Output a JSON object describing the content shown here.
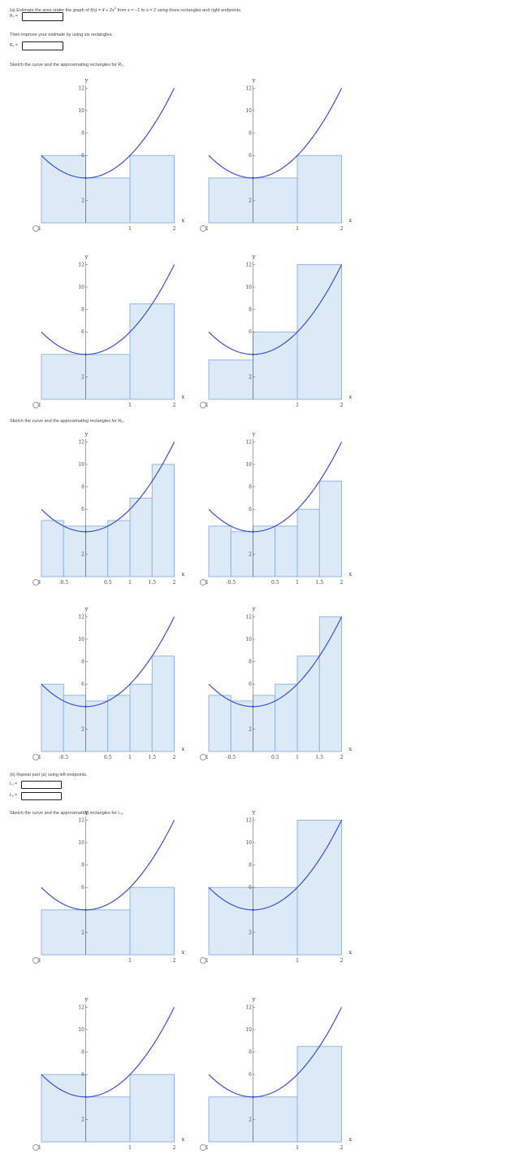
{
  "part_a": {
    "question_prefix": "(a) Estimate the area under the graph of",
    "function_text": "f(x) = 4 + 2x",
    "exponent": "2",
    "question_suffix": "from x = −1 to x = 2 using three rectangles and right endpoints.",
    "r3_label": "R₃ =",
    "r3_value": "",
    "improve_text": "Then improve your estimate by using six rectangles.",
    "r6_label": "R₆ =",
    "r6_value": "",
    "sketch_r3_text": "Sketch the curve and the approximating rectangles for R₃.",
    "sketch_r6_text": "Sketch the curve and the approximating rectangles for R₆."
  },
  "part_b": {
    "question": "(b) Repeat part (a) using left endpoints.",
    "l3_label": "L₃ =",
    "l3_value": "",
    "l6_label": "L₆ =",
    "l6_value": "",
    "sketch_l3_text": "Sketch the curve and the approximating rectangles for L₃."
  },
  "axis": {
    "x_label": "x",
    "y_label": "y",
    "x_range": [
      -1,
      2
    ],
    "y_range": [
      0,
      12
    ],
    "y_ticks": [
      "2",
      "6",
      "8",
      "10",
      "12"
    ],
    "x_ticks_coarse": [
      "-1",
      "1",
      "2"
    ],
    "x_ticks_fine": [
      "-1",
      "-0.5",
      "0.5",
      "1",
      "1.5",
      "2"
    ]
  },
  "colors": {
    "curve": "#3b4fd8",
    "rect_fill": "#dceaf8",
    "rect_stroke": "#8aaee0",
    "axis": "#666666"
  },
  "graphs": [
    {
      "id": "r3-opt1",
      "rects": [
        [
          -1,
          0,
          6
        ],
        [
          0,
          1,
          4
        ],
        [
          1,
          2,
          6
        ]
      ]
    },
    {
      "id": "r3-opt2",
      "rects": [
        [
          -1,
          0,
          4
        ],
        [
          0,
          1,
          4
        ],
        [
          1,
          2,
          6
        ]
      ]
    },
    {
      "id": "r3-opt3",
      "rects": [
        [
          -1,
          0,
          4
        ],
        [
          0,
          1,
          4
        ],
        [
          1,
          2,
          8.5
        ]
      ]
    },
    {
      "id": "r3-opt4",
      "rects": [
        [
          -1,
          0,
          3.5
        ],
        [
          0,
          1,
          6
        ],
        [
          1,
          2,
          12
        ]
      ]
    },
    {
      "id": "r6-opt1",
      "rects": [
        [
          -1,
          -0.5,
          5
        ],
        [
          -0.5,
          0,
          4.5
        ],
        [
          0,
          0.5,
          4.5
        ],
        [
          0.5,
          1,
          5
        ],
        [
          1,
          1.5,
          7
        ],
        [
          1.5,
          2,
          10
        ]
      ]
    },
    {
      "id": "r6-opt2",
      "rects": [
        [
          -1,
          -0.5,
          4.5
        ],
        [
          -0.5,
          0,
          4
        ],
        [
          0,
          0.5,
          4.5
        ],
        [
          0.5,
          1,
          4.5
        ],
        [
          1,
          1.5,
          6
        ],
        [
          1.5,
          2,
          8.5
        ]
      ]
    },
    {
      "id": "r6-opt3",
      "rects": [
        [
          -1,
          -0.5,
          6
        ],
        [
          -0.5,
          0,
          5
        ],
        [
          0,
          0.5,
          4.5
        ],
        [
          0.5,
          1,
          5
        ],
        [
          1,
          1.5,
          6
        ],
        [
          1.5,
          2,
          8.5
        ]
      ]
    },
    {
      "id": "r6-opt4",
      "rects": [
        [
          -1,
          -0.5,
          5
        ],
        [
          -0.5,
          0,
          4.5
        ],
        [
          0,
          0.5,
          5
        ],
        [
          0.5,
          1,
          6
        ],
        [
          1,
          1.5,
          8.5
        ],
        [
          1.5,
          2,
          12
        ]
      ]
    },
    {
      "id": "l3-opt1",
      "rects": [
        [
          -1,
          0,
          4
        ],
        [
          0,
          1,
          4
        ],
        [
          1,
          2,
          6
        ]
      ]
    },
    {
      "id": "l3-opt2",
      "rects": [
        [
          -1,
          0,
          6
        ],
        [
          0,
          1,
          6
        ],
        [
          1,
          2,
          12
        ]
      ]
    },
    {
      "id": "l3-opt3",
      "rects": [
        [
          -1,
          0,
          6
        ],
        [
          0,
          1,
          4
        ],
        [
          1,
          2,
          6
        ]
      ]
    },
    {
      "id": "l3-opt4",
      "rects": [
        [
          -1,
          0,
          4
        ],
        [
          0,
          1,
          4
        ],
        [
          1,
          2,
          8.5
        ]
      ]
    }
  ]
}
